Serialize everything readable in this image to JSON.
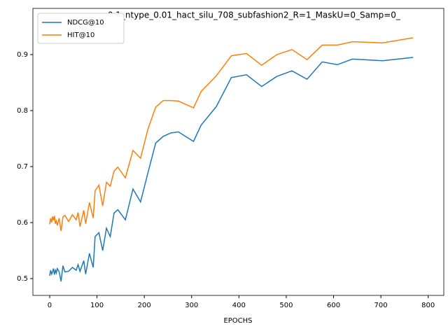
{
  "chart_data": {
    "type": "line",
    "title": "_nmax_0.1_ntype_0.01_hact_silu_708_subfashion2_R=1_MaskU=0_Samp=0_",
    "x_label": "EPOCHS",
    "x": [
      0,
      2,
      4,
      6,
      8,
      10,
      12,
      14,
      16,
      20,
      24,
      28,
      32,
      40,
      48,
      56,
      60,
      64,
      72,
      76,
      84,
      92,
      96,
      104,
      112,
      120,
      128,
      136,
      144,
      160,
      176,
      192,
      208,
      224,
      240,
      256,
      272,
      304,
      320,
      352,
      384,
      416,
      448,
      480,
      512,
      544,
      576,
      608,
      640,
      704,
      768
    ],
    "series": [
      {
        "name": "NDCG@10",
        "color": "#1f77b4",
        "values": [
          0.505,
          0.515,
          0.508,
          0.512,
          0.518,
          0.507,
          0.515,
          0.51,
          0.518,
          0.512,
          0.495,
          0.523,
          0.512,
          0.513,
          0.52,
          0.515,
          0.525,
          0.513,
          0.532,
          0.508,
          0.545,
          0.52,
          0.575,
          0.582,
          0.55,
          0.59,
          0.575,
          0.617,
          0.623,
          0.605,
          0.66,
          0.637,
          0.69,
          0.742,
          0.754,
          0.76,
          0.762,
          0.745,
          0.774,
          0.807,
          0.859,
          0.864,
          0.843,
          0.861,
          0.871,
          0.856,
          0.887,
          0.882,
          0.892,
          0.889,
          0.895
        ]
      },
      {
        "name": "HIT@10",
        "color": "#ff7f0e",
        "values": [
          0.597,
          0.608,
          0.6,
          0.611,
          0.604,
          0.612,
          0.598,
          0.603,
          0.595,
          0.608,
          0.585,
          0.61,
          0.613,
          0.602,
          0.614,
          0.605,
          0.618,
          0.593,
          0.622,
          0.598,
          0.636,
          0.608,
          0.657,
          0.667,
          0.63,
          0.672,
          0.665,
          0.692,
          0.699,
          0.68,
          0.729,
          0.715,
          0.768,
          0.806,
          0.818,
          0.818,
          0.817,
          0.805,
          0.834,
          0.862,
          0.898,
          0.902,
          0.881,
          0.9,
          0.909,
          0.891,
          0.917,
          0.917,
          0.923,
          0.921,
          0.93
        ]
      }
    ],
    "xlim": [
      -35.5,
      833
    ],
    "ylim": [
      0.47,
      0.9825
    ],
    "xticks": [
      0,
      100,
      200,
      300,
      400,
      500,
      600,
      700,
      800
    ],
    "yticks": [
      0.5,
      0.6,
      0.7,
      0.8,
      0.9
    ],
    "legend": "upper left"
  }
}
